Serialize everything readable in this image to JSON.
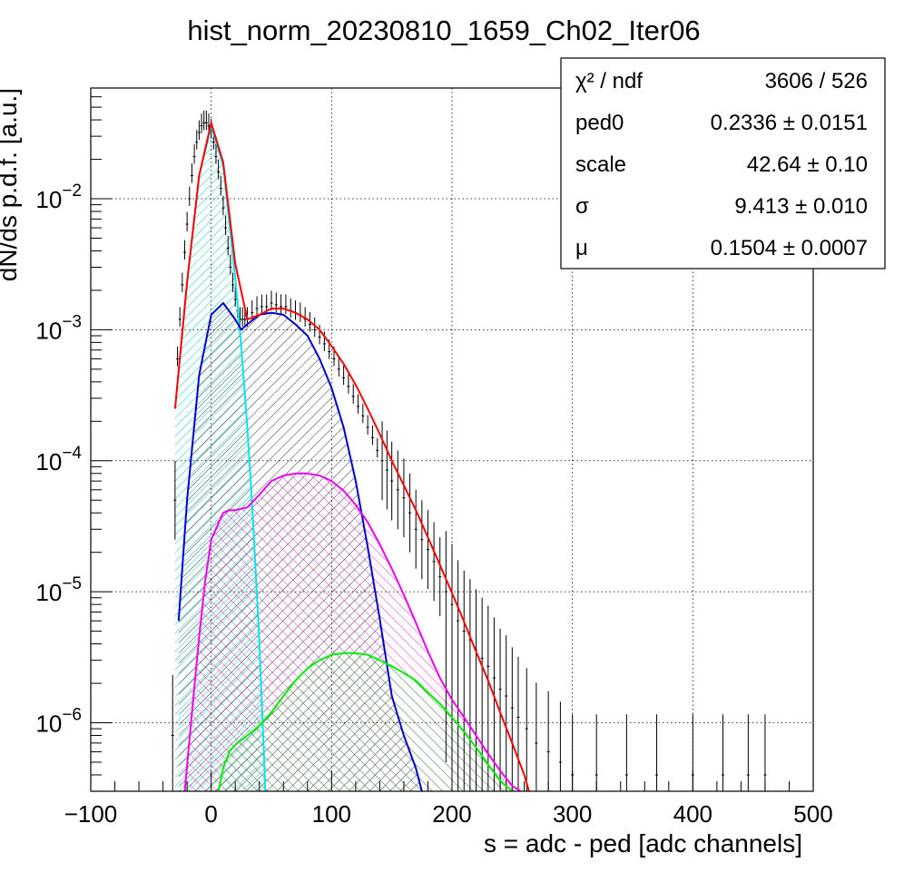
{
  "chart_data": {
    "type": "line",
    "title": "hist_norm_20230810_1659_Ch02_Iter06",
    "xlabel": "s = adc - ped [adc channels]",
    "ylabel": "dN/ds p.d.f. [a.u.]",
    "xlim": [
      -100,
      500
    ],
    "ylim": [
      3e-07,
      0.07
    ],
    "yscale": "log",
    "grid": true,
    "x_ticks": [
      {
        "value": -100,
        "label": "−100"
      },
      {
        "value": 0,
        "label": "0"
      },
      {
        "value": 100,
        "label": "100"
      },
      {
        "value": 200,
        "label": "200"
      },
      {
        "value": 300,
        "label": "300"
      },
      {
        "value": 400,
        "label": "400"
      },
      {
        "value": 500,
        "label": "500"
      }
    ],
    "y_ticks": [
      {
        "value": 0.01,
        "base": "10",
        "exp": "−2"
      },
      {
        "value": 0.001,
        "base": "10",
        "exp": "−3"
      },
      {
        "value": 0.0001,
        "base": "10",
        "exp": "−4"
      },
      {
        "value": 1e-05,
        "base": "10",
        "exp": "−5"
      },
      {
        "value": 1e-06,
        "base": "10",
        "exp": "−6"
      }
    ],
    "stats": {
      "position": "top-right",
      "rows": [
        {
          "name": "χ² / ndf",
          "value": "3606 / 526"
        },
        {
          "name": "ped0",
          "value": "0.2336 ± 0.0151"
        },
        {
          "name": "scale",
          "value": "42.64 ± 0.10"
        },
        {
          "name": "σ",
          "value": "9.413 ± 0.010"
        },
        {
          "name": "μ",
          "value": "0.1504 ± 0.0007"
        }
      ]
    },
    "series": [
      {
        "color": "#ff0000",
        "fill": "none",
        "x": [
          -30,
          -20,
          -10,
          0,
          10,
          20,
          30,
          40,
          50,
          60,
          70,
          80,
          90,
          100,
          110,
          120,
          130,
          140,
          150,
          160,
          170,
          180,
          190,
          200,
          210,
          220,
          230,
          240,
          250,
          260,
          264
        ],
        "y": [
          0.00025,
          0.0023,
          0.015,
          0.038,
          0.019,
          0.0032,
          0.0012,
          0.0013,
          0.00145,
          0.00145,
          0.00135,
          0.0012,
          0.001,
          0.00075,
          0.00055,
          0.00038,
          0.00025,
          0.00016,
          0.0001,
          6.5e-05,
          4.2e-05,
          2.6e-05,
          1.6e-05,
          9.8e-06,
          5.9e-06,
          3.5e-06,
          2.1e-06,
          1.2e-06,
          7e-07,
          4e-07,
          3e-07
        ]
      },
      {
        "color": "#00e5ee",
        "fill": "hatch-cyan",
        "x": [
          -30,
          -20,
          -10,
          0,
          10,
          20,
          25,
          30,
          35,
          40,
          45
        ],
        "y": [
          0.00025,
          0.0023,
          0.015,
          0.036,
          0.018,
          0.0025,
          0.00075,
          0.00018,
          3.2e-05,
          4.2e-06,
          3e-07
        ]
      },
      {
        "color": "#0000cc",
        "fill": "hatch-black",
        "x": [
          -27,
          -20,
          -10,
          0,
          10,
          20,
          25,
          30,
          40,
          50,
          60,
          70,
          80,
          90,
          100,
          110,
          120,
          130,
          140,
          150,
          160,
          170,
          175
        ],
        "y": [
          6e-06,
          5e-05,
          0.00045,
          0.0013,
          0.0016,
          0.0012,
          0.001,
          0.0011,
          0.0013,
          0.00135,
          0.0013,
          0.0011,
          0.0009,
          0.0006,
          0.00036,
          0.00018,
          7e-05,
          2.2e-05,
          6.2e-06,
          1.6e-06,
          8e-07,
          4.5e-07,
          3e-07
        ]
      },
      {
        "color": "#ee00ee",
        "fill": "hatch-magenta",
        "x": [
          -22,
          -15,
          -10,
          -5,
          0,
          10,
          15,
          20,
          30,
          40,
          50,
          60,
          70,
          80,
          90,
          100,
          110,
          120,
          130,
          140,
          150,
          160,
          170,
          180,
          190,
          200,
          210,
          220,
          230,
          240,
          250,
          257
        ],
        "y": [
          3e-07,
          1.5e-06,
          4.5e-06,
          1.2e-05,
          2.5e-05,
          4e-05,
          4.2e-05,
          4.2e-05,
          4.4e-05,
          5.5e-05,
          7e-05,
          7.7e-05,
          8e-05,
          8e-05,
          7.7e-05,
          7e-05,
          5.9e-05,
          4.6e-05,
          3.4e-05,
          2.3e-05,
          1.5e-05,
          9.5e-06,
          5.8e-06,
          3.5e-06,
          2.2e-06,
          1.5e-06,
          1.1e-06,
          8e-07,
          5.8e-07,
          4.3e-07,
          3.3e-07,
          3e-07
        ]
      },
      {
        "color": "#00ee00",
        "fill": "hatch-green",
        "x": [
          6,
          10,
          15,
          20,
          30,
          40,
          50,
          60,
          70,
          80,
          90,
          100,
          110,
          120,
          130,
          140,
          150,
          160,
          170,
          180,
          190,
          200,
          210,
          220,
          230,
          240,
          250
        ],
        "y": [
          3e-07,
          4.5e-07,
          6e-07,
          6.8e-07,
          8e-07,
          9.5e-07,
          1.2e-06,
          1.6e-06,
          2.1e-06,
          2.6e-06,
          3e-06,
          3.3e-06,
          3.4e-06,
          3.4e-06,
          3.3e-06,
          3e-06,
          2.7e-06,
          2.4e-06,
          2.1e-06,
          1.7e-06,
          1.4e-06,
          1.1e-06,
          8.5e-07,
          6.5e-07,
          4.8e-07,
          3.6e-07,
          3e-07
        ]
      }
    ],
    "data_points": {
      "color": "#000000",
      "x": [
        -32,
        -30,
        -28,
        -26,
        -24,
        -22,
        -20,
        -18,
        -16,
        -14,
        -12,
        -10,
        -8,
        -6,
        -4,
        -2,
        0,
        2,
        4,
        6,
        8,
        10,
        12,
        14,
        16,
        18,
        20,
        22,
        24,
        26,
        28,
        30,
        34,
        38,
        42,
        46,
        50,
        54,
        58,
        62,
        66,
        70,
        74,
        78,
        82,
        86,
        90,
        94,
        98,
        102,
        106,
        110,
        114,
        118,
        122,
        126,
        130,
        134,
        138,
        142,
        146,
        150,
        155,
        160,
        165,
        170,
        175,
        180,
        185,
        190,
        195,
        200,
        205,
        210,
        215,
        220,
        225,
        230,
        235,
        240,
        245,
        250,
        255,
        262,
        270,
        280,
        290,
        300,
        320,
        345,
        370,
        400,
        425,
        446,
        460
      ],
      "y": [
        8e-07,
        5e-05,
        0.0006,
        0.0012,
        0.0022,
        0.0039,
        0.0064,
        0.01,
        0.015,
        0.021,
        0.027,
        0.032,
        0.036,
        0.038,
        0.038,
        0.036,
        0.033,
        0.027,
        0.021,
        0.016,
        0.012,
        0.0085,
        0.006,
        0.0042,
        0.003,
        0.0022,
        0.0017,
        0.0014,
        0.0012,
        0.0012,
        0.0012,
        0.0012,
        0.00135,
        0.00145,
        0.0015,
        0.0015,
        0.0016,
        0.00155,
        0.0015,
        0.0015,
        0.0014,
        0.00135,
        0.0013,
        0.0012,
        0.0011,
        0.001,
        0.00088,
        0.00078,
        0.00068,
        0.0006,
        0.0005,
        0.00043,
        0.00037,
        0.00031,
        0.00026,
        0.00022,
        0.00018,
        0.00015,
        0.00012,
        0.0001,
        8.5e-05,
        7e-05,
        6e-05,
        5.2e-05,
        4e-05,
        3e-05,
        2.5e-05,
        2.1e-05,
        1.7e-05,
        1.3e-05,
        1e-05,
        8e-06,
        6e-06,
        5e-06,
        4.3e-06,
        3.6e-06,
        3.1e-06,
        2.7e-06,
        2.2e-06,
        1.8e-06,
        1.6e-06,
        1.3e-06,
        1.1e-06,
        9e-07,
        7e-07,
        6e-07,
        5e-07,
        4e-07,
        4e-07,
        4e-07,
        4e-07,
        4e-07,
        4e-07,
        4e-07,
        4e-07
      ]
    }
  }
}
